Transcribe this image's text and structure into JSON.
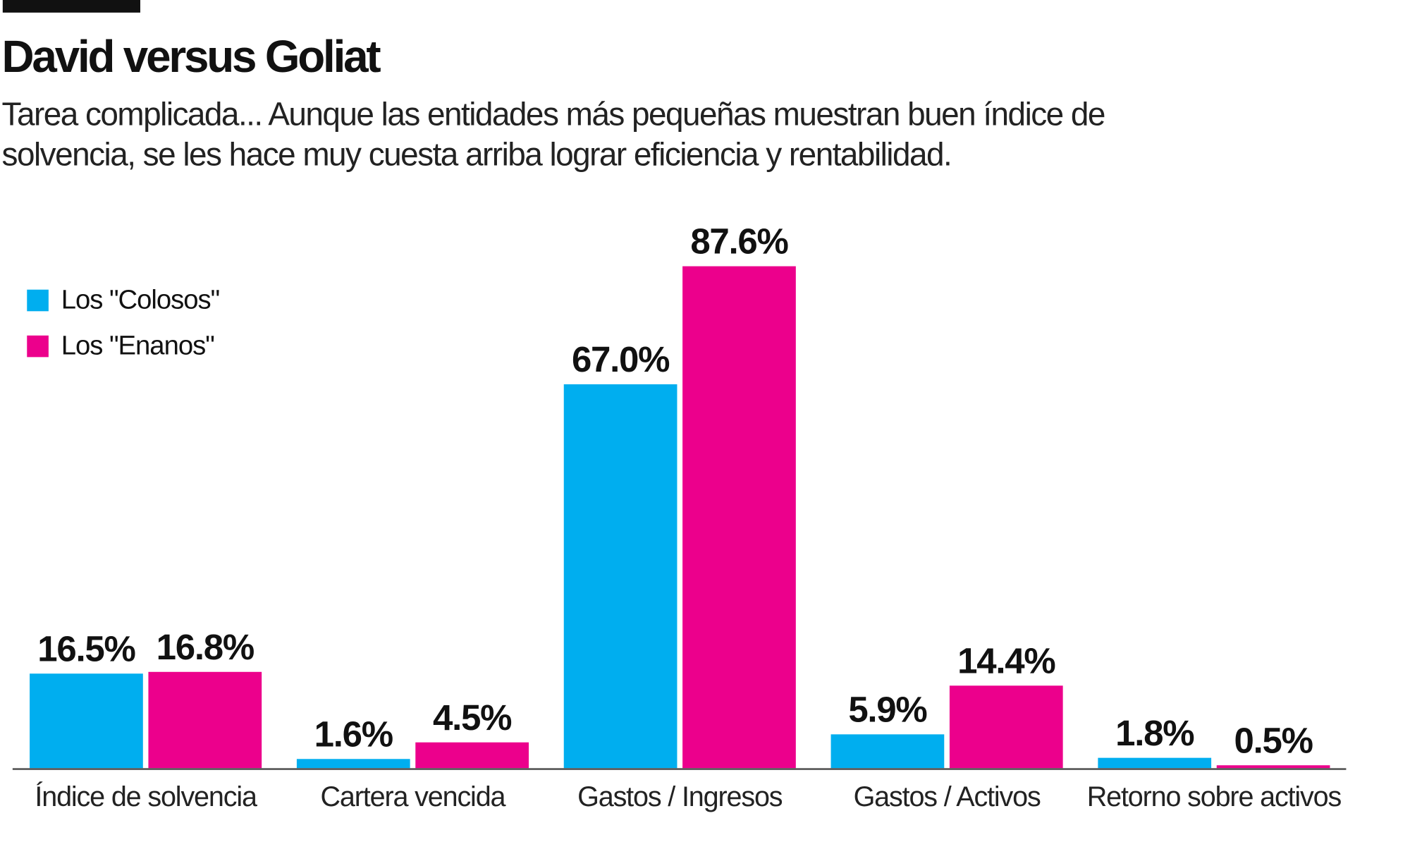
{
  "title": "David versus Goliat",
  "subtitle": "Tarea complicada... Aunque las entidades más pequeñas muestran buen índice de solvencia, se les hace muy cuesta arriba lograr eficiencia y rentabilidad.",
  "chart_data": {
    "type": "bar",
    "title": "David versus Goliat",
    "categories": [
      "Índice de solvencia",
      "Cartera vencida",
      "Gastos / Ingresos",
      "Gastos / Activos",
      "Retorno sobre activos"
    ],
    "series": [
      {
        "name": "Los \"Colosos\"",
        "color": "#00AEEF",
        "values": [
          16.5,
          1.6,
          67.0,
          5.9,
          1.8
        ],
        "labels": [
          "16.5%",
          "1.6%",
          "67.0%",
          "5.9%",
          "1.8%"
        ]
      },
      {
        "name": "Los \"Enanos\"",
        "color": "#EC008C",
        "values": [
          16.8,
          4.5,
          87.6,
          14.4,
          0.5
        ],
        "labels": [
          "16.8%",
          "4.5%",
          "87.6%",
          "14.4%",
          "0.5%"
        ]
      }
    ],
    "ylim": [
      0,
      87.6
    ],
    "grid": false,
    "legend_position": "top-left",
    "axis_color": "#555555"
  }
}
